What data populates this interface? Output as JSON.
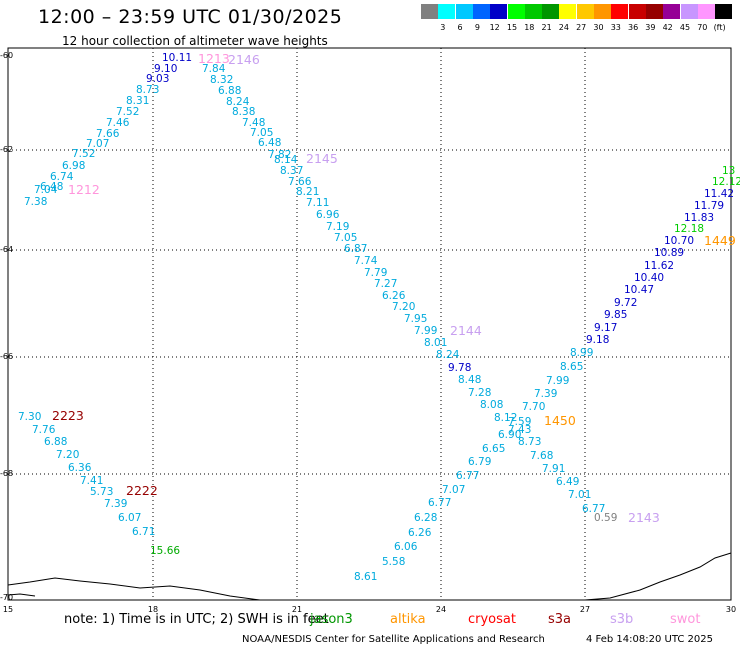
{
  "header": {
    "title": "12:00 – 23:59 UTC 01/30/2025",
    "subtitle": "12 hour collection of altimeter wave heights"
  },
  "legend": {
    "unit": "(ft)",
    "items": [
      {
        "label": "",
        "color": "#808080"
      },
      {
        "label": "3",
        "color": "#00ffff"
      },
      {
        "label": "6",
        "color": "#00c8ff"
      },
      {
        "label": "9",
        "color": "#0064ff"
      },
      {
        "label": "12",
        "color": "#0000c8"
      },
      {
        "label": "15",
        "color": "#00ff00"
      },
      {
        "label": "18",
        "color": "#00c800"
      },
      {
        "label": "21",
        "color": "#009600"
      },
      {
        "label": "24",
        "color": "#ffff00"
      },
      {
        "label": "27",
        "color": "#ffc800"
      },
      {
        "label": "30",
        "color": "#ff9600"
      },
      {
        "label": "33",
        "color": "#ff0000"
      },
      {
        "label": "36",
        "color": "#c80000"
      },
      {
        "label": "39",
        "color": "#960000"
      },
      {
        "label": "42",
        "color": "#960096"
      },
      {
        "label": "45",
        "color": "#c896ff"
      },
      {
        "label": "70",
        "color": "#ff96ff"
      },
      {
        "label": "(ft)",
        "color": "#000000"
      }
    ]
  },
  "map": {
    "lon_labels": [
      "15",
      "18",
      "21",
      "24",
      "27",
      "30"
    ],
    "lat_labels": [
      "-60",
      "-62",
      "-64",
      "-66",
      "-68",
      "-70"
    ],
    "pass_labels": [
      {
        "text": "2146",
        "color": "#c8a0f0"
      },
      {
        "text": "1212",
        "color": "#ff96dc"
      },
      {
        "text": "2145",
        "color": "#c8a0f0"
      },
      {
        "text": "2144",
        "color": "#c8a0f0"
      },
      {
        "text": "1449",
        "color": "#ff9600"
      },
      {
        "text": "1450",
        "color": "#ff9600"
      },
      {
        "text": "2143",
        "color": "#c8a0f0"
      },
      {
        "text": "2223",
        "color": "#960000"
      },
      {
        "text": "2222",
        "color": "#960000"
      },
      {
        "text": "1212",
        "color": "#ff96dc"
      },
      {
        "text": "1213",
        "color": "#ff96dc"
      }
    ],
    "readings": {
      "track_2146": [
        "10.11",
        "9.10",
        "9.03",
        "8.73",
        "8.31",
        "7.52",
        "7.46",
        "7.66",
        "7.07",
        "7.52",
        "6.98",
        "6.74",
        "6.48",
        "7.04",
        "7.38"
      ],
      "track_2145": [
        "7.84",
        "8.32",
        "6.88",
        "8.24",
        "8.38",
        "7.48",
        "7.05",
        "6.48",
        "7.82",
        "8.14",
        "8.37",
        "7.66",
        "8.21",
        "7.11",
        "6.96",
        "7.19",
        "7.05",
        "6.87",
        "7.74",
        "7.79",
        "7.27",
        "6.26",
        "7.20",
        "7.95",
        "7.99",
        "8.01",
        "8.24",
        "9.78",
        "8.48",
        "7.28",
        "8.08",
        "8.12",
        "7.59",
        "7.43",
        "6.90",
        "8.73",
        "7.68",
        "7.91",
        "6.49",
        "7.01",
        "6.77",
        "0.59"
      ],
      "track_1449": [
        "13",
        "12.12",
        "11.42",
        "11.79",
        "11.83",
        "12.18",
        "10.70",
        "10.89",
        "11.62",
        "10.40",
        "10.47",
        "9.72",
        "9.85",
        "9.17",
        "9.18",
        "8.99",
        "8.65",
        "7.99",
        "7.39",
        "7.70",
        "6.65",
        "6.79",
        "6.77",
        "7.07",
        "6.77",
        "6.28",
        "6.26",
        "6.06",
        "5.58",
        "8.61"
      ],
      "track_2223": [
        "7.30",
        "7.76",
        "6.88",
        "7.20",
        "6.36",
        "7.41",
        "5.73",
        "7.39",
        "6.07",
        "6.71",
        "15.66"
      ]
    }
  },
  "footer": {
    "note": "note:  1) Time is in UTC;  2) SWH is in feet",
    "satellites": [
      {
        "name": "jason3",
        "color": "#009600"
      },
      {
        "name": "altika",
        "color": "#ff9600"
      },
      {
        "name": "cryosat",
        "color": "#ff0000"
      },
      {
        "name": "s3a",
        "color": "#960000"
      },
      {
        "name": "s3b",
        "color": "#c8a0f0"
      },
      {
        "name": "swot",
        "color": "#ff96dc"
      }
    ],
    "credit": "NOAA/NESDIS Center for Satellite Applications and Research",
    "timestamp": "4 Feb 14:08:20 UTC 2025"
  }
}
